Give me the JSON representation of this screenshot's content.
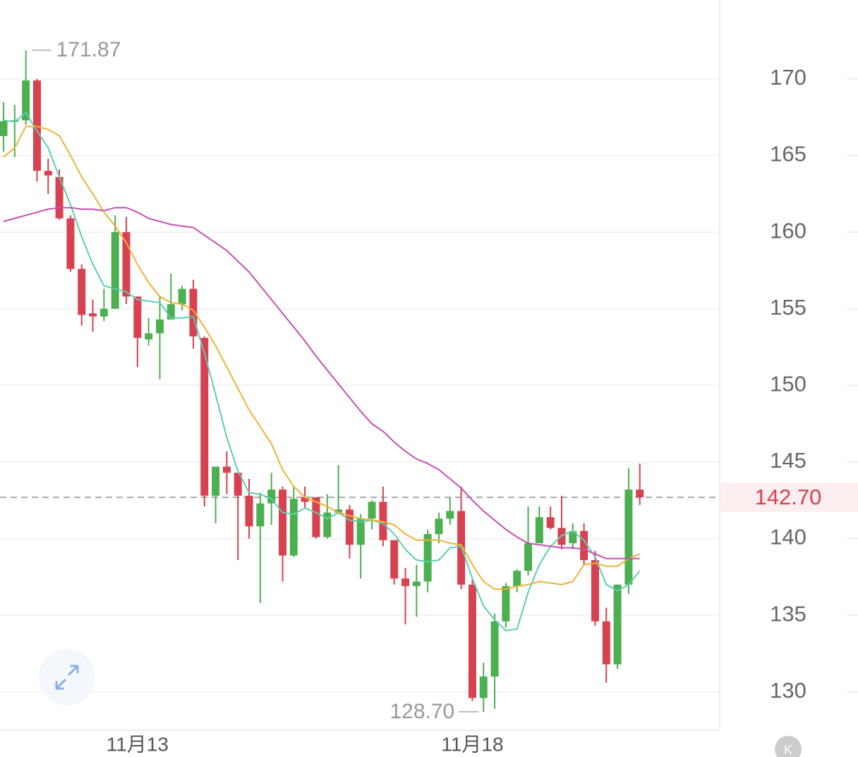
{
  "chart_data": {
    "type": "candlestick",
    "categories": [
      null,
      null,
      null,
      null,
      null,
      null,
      null,
      null,
      null,
      null,
      null,
      null,
      "11月13",
      null,
      null,
      null,
      null,
      null,
      null,
      null,
      null,
      null,
      null,
      null,
      null,
      null,
      null,
      null,
      null,
      null,
      null,
      null,
      null,
      null,
      null,
      null,
      null,
      null,
      null,
      null,
      null,
      null,
      "11月18",
      null,
      null,
      null,
      null,
      null,
      null,
      null,
      null,
      null,
      null,
      null,
      null,
      null,
      null,
      null
    ],
    "open": [
      166.27,
      167.2,
      167.3,
      169.9,
      164.0,
      163.6,
      160.9,
      157.6,
      154.7,
      154.5,
      155.0,
      160.0,
      155.8,
      153.0,
      153.4,
      154.3,
      155.3,
      156.3,
      153.1,
      142.8,
      144.7,
      144.3,
      142.8,
      140.8,
      142.3,
      143.2,
      138.9,
      142.7,
      142.7,
      140.1,
      141.7,
      141.9,
      139.6,
      141.3,
      142.4,
      139.9,
      137.4,
      136.9,
      137.2,
      140.3,
      141.3,
      141.8,
      137.0,
      129.6,
      131.0,
      134.6,
      136.9,
      137.9,
      139.7,
      141.4,
      140.7,
      139.7,
      140.5,
      138.6,
      134.6,
      131.8,
      137.0,
      143.2
    ],
    "high": [
      168.48,
      168.3,
      171.87,
      170.0,
      164.8,
      164.1,
      161.1,
      157.9,
      155.6,
      156.3,
      161.1,
      161.0,
      155.8,
      154.4,
      155.8,
      157.3,
      156.5,
      156.9,
      153.2,
      144.7,
      145.7,
      144.3,
      143.9,
      143.0,
      144.3,
      143.4,
      143.4,
      143.4,
      142.7,
      142.9,
      144.8,
      142.2,
      141.6,
      142.5,
      143.4,
      139.9,
      138.1,
      138.3,
      140.6,
      141.7,
      142.7,
      143.4,
      137.3,
      131.9,
      135.1,
      137.1,
      138.0,
      142.1,
      142.1,
      142.1,
      142.8,
      141.0,
      141.0,
      139.2,
      135.5,
      137.0,
      144.6,
      144.9
    ],
    "low": [
      165.26,
      164.9,
      167.0,
      163.3,
      162.5,
      160.8,
      157.4,
      153.9,
      153.5,
      154.2,
      155.0,
      155.3,
      151.2,
      152.6,
      150.4,
      154.3,
      154.9,
      152.4,
      142.1,
      141.0,
      142.9,
      138.6,
      140.0,
      135.8,
      140.9,
      137.2,
      138.8,
      142.0,
      140.0,
      140.0,
      141.6,
      138.7,
      137.4,
      140.6,
      139.5,
      137.0,
      134.4,
      134.9,
      136.5,
      139.7,
      140.9,
      136.7,
      129.4,
      128.7,
      128.9,
      134.2,
      136.5,
      137.6,
      139.7,
      140.6,
      139.3,
      139.3,
      138.3,
      134.3,
      130.6,
      131.5,
      136.4,
      142.2
    ],
    "close": [
      167.24,
      167.3,
      169.9,
      164.0,
      163.7,
      160.9,
      157.6,
      154.6,
      154.5,
      155.0,
      160.0,
      155.8,
      153.1,
      153.4,
      154.3,
      155.3,
      156.3,
      153.2,
      142.8,
      144.7,
      144.3,
      142.8,
      140.8,
      142.3,
      143.2,
      138.9,
      142.6,
      142.4,
      140.1,
      141.7,
      141.9,
      139.6,
      141.3,
      142.4,
      139.9,
      137.4,
      136.9,
      137.2,
      140.3,
      141.3,
      141.8,
      137.0,
      129.6,
      131.0,
      134.6,
      136.9,
      137.9,
      139.7,
      141.4,
      140.7,
      139.6,
      140.5,
      138.6,
      134.6,
      131.8,
      137.0,
      143.2,
      142.7
    ],
    "up_color": "#4caf50",
    "down_color": "#d8414f",
    "lines": [
      {
        "color": "#5ccfae",
        "values": [
          167.3,
          167.2,
          167.8,
          166.6,
          165.5,
          163.6,
          161.8,
          159.7,
          157.9,
          156.5,
          156.3,
          156.1,
          155.6,
          155.5,
          155.4,
          154.4,
          154.4,
          154.5,
          152.1,
          149.4,
          146.6,
          144.4,
          143.0,
          142.9,
          142.6,
          141.7,
          141.6,
          142.0,
          141.7,
          141.3,
          141.7,
          141.2,
          141.1,
          141.2,
          141.0,
          140.3,
          139.3,
          138.6,
          138.5,
          138.6,
          139.4,
          139.5,
          137.4,
          135.6,
          134.7,
          134.0,
          134.1,
          136.5,
          138.3,
          139.5,
          140.2,
          140.5,
          139.9,
          138.8,
          137.0,
          136.6,
          137.0,
          137.9
        ]
      },
      {
        "color": "#eeb236",
        "values": [
          164.9,
          165.5,
          166.9,
          166.9,
          166.7,
          166.3,
          165.0,
          163.6,
          162.5,
          161.3,
          160.4,
          159.3,
          157.9,
          156.7,
          155.8,
          155.4,
          155.3,
          154.9,
          153.8,
          152.6,
          151.2,
          149.8,
          148.4,
          147.3,
          146.2,
          144.5,
          143.4,
          142.7,
          142.4,
          142.1,
          141.7,
          141.5,
          141.3,
          141.2,
          141.1,
          140.9,
          140.3,
          139.9,
          139.9,
          139.9,
          139.7,
          139.6,
          138.3,
          137.2,
          136.7,
          136.7,
          136.9,
          137.0,
          137.2,
          137.1,
          137.0,
          137.2,
          138.3,
          138.4,
          138.2,
          138.2,
          138.7,
          139.0
        ]
      },
      {
        "color": "#c64fb2",
        "values": [
          160.7,
          160.9,
          161.1,
          161.3,
          161.5,
          161.6,
          161.6,
          161.5,
          161.5,
          161.4,
          161.6,
          161.6,
          161.3,
          160.9,
          160.7,
          160.5,
          160.4,
          160.3,
          159.8,
          159.3,
          158.8,
          158.1,
          157.4,
          156.5,
          155.6,
          154.7,
          153.8,
          152.9,
          151.9,
          151.0,
          150.1,
          149.2,
          148.3,
          147.5,
          147.0,
          146.3,
          145.7,
          145.2,
          144.9,
          144.5,
          143.9,
          143.3,
          142.5,
          141.8,
          141.2,
          140.6,
          140.1,
          139.7,
          139.6,
          139.5,
          139.4,
          139.4,
          139.3,
          139.0,
          138.7,
          138.7,
          138.7,
          138.7
        ]
      }
    ],
    "ylim": [
      127.5,
      175.15
    ],
    "yticks": [
      130,
      135,
      140,
      145,
      150,
      155,
      160,
      165,
      170
    ],
    "grid": true,
    "current_price": {
      "value": 142.7,
      "label": "142.70"
    },
    "max_label": 171.87,
    "min_label": {
      "value": 128.7,
      "label": "128.70"
    }
  }
}
